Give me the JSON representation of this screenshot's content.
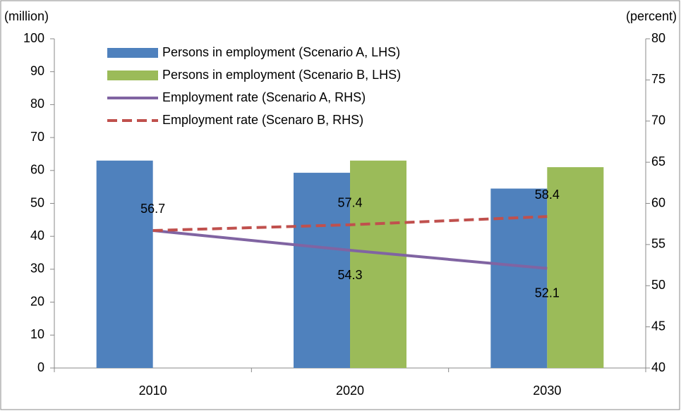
{
  "chart_data": {
    "type": "bar-line",
    "categories": [
      "2010",
      "2020",
      "2030"
    ],
    "ylabel": "(million)",
    "y2label": "(percent)",
    "ylim": [
      0,
      100
    ],
    "yticks": [
      0,
      10,
      20,
      30,
      40,
      50,
      60,
      70,
      80,
      90,
      100
    ],
    "y2lim": [
      40,
      80
    ],
    "y2ticks": [
      40,
      45,
      50,
      55,
      60,
      65,
      70,
      75,
      80
    ],
    "legend": "upper left",
    "series": [
      {
        "name": "Persons in employment (Scenario A, LHS)",
        "type": "bar",
        "color": "#4f81bd",
        "values": [
          63,
          59.3,
          54.5
        ]
      },
      {
        "name": "Persons in employment (Scenario B, LHS)",
        "type": "bar",
        "color": "#9bbb59",
        "values": [
          null,
          63,
          61
        ]
      },
      {
        "name": "Employment rate (Scenario A, RHS)",
        "type": "line",
        "axis": "y2",
        "color": "#8064a2",
        "values": [
          56.7,
          54.3,
          52.1
        ]
      },
      {
        "name": "Employment rate (Scenaro B, RHS)",
        "type": "line",
        "axis": "y2",
        "dashed": true,
        "color": "#c0504d",
        "values": [
          56.7,
          57.4,
          58.4
        ]
      }
    ]
  }
}
